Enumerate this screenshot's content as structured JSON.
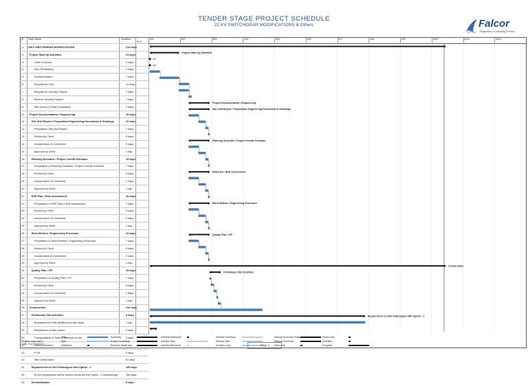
{
  "header": {
    "title": "TENDER STAGE PROJECT SCHEDULE",
    "subtitle": "22 KV SWITCHGEAR MODIFICATIONS & Others"
  },
  "logo": {
    "name": "Falcor",
    "tagline": "Engineering & Contracting Services"
  },
  "columns": {
    "id": "ID",
    "name": "Task Name",
    "duration": "Duration"
  },
  "timescale": {
    "start_label": "W 2",
    "periods": [
      "W1",
      "W2",
      "W3",
      "W4",
      "W5",
      "W6",
      "W7",
      "W8",
      "W9",
      "W10",
      "W11",
      "W12"
    ]
  },
  "tasks": [
    {
      "id": "1",
      "name": "22KV SWITCHGEAR  MODIFICATIONS",
      "duration": "213 days",
      "summary": true,
      "start": 0,
      "finish": 213
    },
    {
      "id": "2",
      "name": "Project Start Up Activities",
      "duration": "21 days",
      "summary": true,
      "start": 0,
      "finish": 21,
      "label": "Project Start Up Activities"
    },
    {
      "id": "3",
      "name": "Letter of Award",
      "duration": "0 days",
      "milestone": true,
      "start": 0,
      "finish": 0,
      "label": "4/2"
    },
    {
      "id": "4",
      "name": "Kick Off Meeting",
      "duration": "0 days",
      "milestone": true,
      "start": 0,
      "finish": 0,
      "label": "4/2"
    },
    {
      "id": "5",
      "name": "Contract Award",
      "duration": "7 days",
      "start": 0,
      "finish": 7
    },
    {
      "id": "6",
      "name": "Request for LOA",
      "duration": "14 days",
      "start": 7,
      "finish": 21
    },
    {
      "id": "7",
      "name": "Request for Security Passes",
      "duration": "7 days",
      "start": 21,
      "finish": 28
    },
    {
      "id": "8",
      "name": "Receive Security Passes",
      "duration": "7 days",
      "start": 21,
      "finish": 28
    },
    {
      "id": "9",
      "name": "Site Survey & Data Compilation",
      "duration": "2 days",
      "start": 28,
      "finish": 30
    },
    {
      "id": "10",
      "name": "Project Documentation / Engineering",
      "duration": "15 days",
      "summary": true,
      "start": 28,
      "finish": 43,
      "label": "Project Documentation / Engineering"
    },
    {
      "id": "11",
      "name": "Site Visit Report / Preparation Engineering Documents & Drawings",
      "duration": "15 days",
      "summary": true,
      "start": 28,
      "finish": 43,
      "label": "Site Visit Report / Preparation Engineering Documents & Drawings"
    },
    {
      "id": "12",
      "name": "Preparation Site Visit Report",
      "duration": "7 days",
      "start": 28,
      "finish": 35
    },
    {
      "id": "13",
      "name": "Review by Client",
      "duration": "5 days",
      "start": 35,
      "finish": 40
    },
    {
      "id": "14",
      "name": "Incorporation of Comments",
      "duration": "2 days",
      "start": 40,
      "finish": 42
    },
    {
      "id": "15",
      "name": "Approval by Client",
      "duration": "1 day",
      "start": 42,
      "finish": 43
    },
    {
      "id": "16",
      "name": "Planning Schedule / Project Overall Schedule",
      "duration": "15 days",
      "summary": true,
      "start": 28,
      "finish": 43,
      "label": "Planning Schedule / Project Overall Schedule"
    },
    {
      "id": "17",
      "name": "Preparation of Planning Schedule / Project Overall Schedule",
      "duration": "7 days",
      "start": 28,
      "finish": 35
    },
    {
      "id": "18",
      "name": "Review by Client",
      "duration": "5 days",
      "start": 35,
      "finish": 40
    },
    {
      "id": "19",
      "name": "Incorporation of Comments",
      "duration": "2 days",
      "start": 40,
      "finish": 42
    },
    {
      "id": "20",
      "name": "Approval by Client",
      "duration": "1 day",
      "start": 42,
      "finish": 43
    },
    {
      "id": "21",
      "name": "HSE Plan / Risk Assessment",
      "duration": "15 days",
      "summary": true,
      "start": 28,
      "finish": 43,
      "label": "HSE Plan / Risk Assessment"
    },
    {
      "id": "22",
      "name": "Preparation of HSE Plan & Risk Assessment",
      "duration": "7 days",
      "start": 28,
      "finish": 35
    },
    {
      "id": "23",
      "name": "Review by Client",
      "duration": "5 days",
      "start": 35,
      "finish": 40
    },
    {
      "id": "24",
      "name": "Incorporation of Comments",
      "duration": "2 days",
      "start": 40,
      "finish": 42
    },
    {
      "id": "25",
      "name": "Approval by Client",
      "duration": "1 day",
      "start": 42,
      "finish": 43
    },
    {
      "id": "26",
      "name": "Work Method / Engineering Procedure",
      "duration": "15 days",
      "summary": true,
      "start": 28,
      "finish": 43,
      "label": "Work Method / Engineering Procedure"
    },
    {
      "id": "27",
      "name": "Preparation of Work Method / Engineering Procedure",
      "duration": "7 days",
      "start": 28,
      "finish": 35
    },
    {
      "id": "28",
      "name": "Review by Client",
      "duration": "5 days",
      "start": 35,
      "finish": 40
    },
    {
      "id": "29",
      "name": "Incorporation of Comments",
      "duration": "2 days",
      "start": 40,
      "finish": 42
    },
    {
      "id": "30",
      "name": "Approval by Client",
      "duration": "1 day",
      "start": 42,
      "finish": 43
    },
    {
      "id": "31",
      "name": "Quality Plan / ITP",
      "duration": "15 days",
      "summary": true,
      "start": 28,
      "finish": 43,
      "label": "Quality Plan / ITP"
    },
    {
      "id": "32",
      "name": "Preparation of Quality Plan / ITP",
      "duration": "7 days",
      "start": 28,
      "finish": 35
    },
    {
      "id": "33",
      "name": "Review by Client",
      "duration": "5 days",
      "start": 35,
      "finish": 40
    },
    {
      "id": "34",
      "name": "Incorporation of Comments",
      "duration": "2 days",
      "start": 40,
      "finish": 42
    },
    {
      "id": "35",
      "name": "Approval by Client",
      "duration": "1 day",
      "start": 42,
      "finish": 43
    },
    {
      "id": "36",
      "name": "Construction",
      "duration": "213 days",
      "summary": true,
      "start": 0,
      "finish": 213,
      "label": "Construction"
    },
    {
      "id": "37",
      "name": "Preliminary Site Activities",
      "duration": "8 days",
      "summary": true,
      "start": 43,
      "finish": 51,
      "label": "Preliminary Site Activities"
    },
    {
      "id": "38",
      "name": "Arrangement of site facilities and site setup",
      "duration": "1 day",
      "start": 43,
      "finish": 44
    },
    {
      "id": "39",
      "name": "Mobilization of Man-power",
      "duration": "2 days",
      "start": 44,
      "finish": 46
    },
    {
      "id": "40",
      "name": "Transportation of Tools & Materials to site",
      "duration": "2 days",
      "start": 46,
      "finish": 48
    },
    {
      "id": "41",
      "name": "Safety induction",
      "duration": "1 day",
      "start": 48,
      "finish": 49
    },
    {
      "id": "42",
      "name": "PTW",
      "duration": "2 days",
      "start": 49,
      "finish": 51
    },
    {
      "id": "43",
      "name": "Site Construction",
      "duration": "81 days",
      "start": 0,
      "finish": 81
    },
    {
      "id": "44",
      "name": "Replacement of 22kV Switchgear with Option - 1",
      "duration": "155 days",
      "summary": true,
      "start": 0,
      "finish": 155,
      "label": "Replacement of 22kV Switchgear with Option - 1"
    },
    {
      "id": "45",
      "name": "All the replacement will be carried out as per the Option - 1 Methodology",
      "duration": "155 days",
      "start": 0,
      "finish": 155
    },
    {
      "id": "46",
      "name": "Demobilization",
      "duration": "5 days",
      "summary": true,
      "start": 0,
      "finish": 5
    }
  ],
  "legend": [
    {
      "label": "Task",
      "kind": "task"
    },
    {
      "label": "Split",
      "kind": "split"
    },
    {
      "label": "Milestone",
      "kind": "milestone"
    },
    {
      "label": "Summary",
      "kind": "summary"
    },
    {
      "label": "Project Summary",
      "kind": "project-summary"
    },
    {
      "label": "External Tasks",
      "kind": "external-task"
    },
    {
      "label": "External Milestone",
      "kind": "external-milestone"
    },
    {
      "label": "Inactive Task",
      "kind": "inactive-task"
    },
    {
      "label": "Inactive Milestone",
      "kind": "inactive-milestone"
    },
    {
      "label": "Inactive Summary",
      "kind": "inactive-summary"
    },
    {
      "label": "Manual Task",
      "kind": "manual-task"
    },
    {
      "label": "Duration-only",
      "kind": "duration-only"
    },
    {
      "label": "Manual Summary Rollup",
      "kind": "manual-summary-rollup"
    },
    {
      "label": "Manual Summary",
      "kind": "manual-summary"
    },
    {
      "label": "Start-only",
      "kind": "start-only"
    },
    {
      "label": "Finish-only",
      "kind": "finish-only"
    },
    {
      "label": "Deadline",
      "kind": "deadline"
    },
    {
      "label": "Progress",
      "kind": "progress"
    }
  ],
  "footer": {
    "project": "Project: mpp.sql11",
    "date": "Date: Sun 10/20/13",
    "page": "Page 1"
  },
  "colors": {
    "title": "#1f4e8c",
    "bar": "#4a7fb5",
    "summary": "#1a1a1a",
    "link": "#1f4e8c"
  }
}
